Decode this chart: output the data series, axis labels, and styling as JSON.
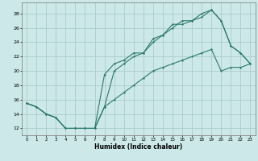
{
  "title": "",
  "xlabel": "Humidex (Indice chaleur)",
  "ylabel": "",
  "background_color": "#cce8e8",
  "grid_color": "#aacccc",
  "line_color": "#2d7a6e",
  "xlim": [
    -0.5,
    23.5
  ],
  "ylim": [
    11,
    29.5
  ],
  "yticks": [
    12,
    14,
    16,
    18,
    20,
    22,
    24,
    26,
    28
  ],
  "xticks": [
    0,
    1,
    2,
    3,
    4,
    5,
    6,
    7,
    8,
    9,
    10,
    11,
    12,
    13,
    14,
    15,
    16,
    17,
    18,
    19,
    20,
    21,
    22,
    23
  ],
  "line1_x": [
    0,
    1,
    2,
    3,
    4,
    5,
    6,
    7,
    8,
    9,
    10,
    11,
    12,
    13,
    14,
    15,
    16,
    17,
    18,
    19,
    20,
    21,
    22,
    23
  ],
  "line1_y": [
    15.5,
    15.0,
    14.0,
    13.5,
    12.0,
    12.0,
    12.0,
    12.0,
    19.5,
    21.0,
    21.5,
    22.5,
    22.5,
    24.5,
    25.0,
    26.5,
    26.5,
    27.0,
    28.0,
    28.5,
    27.0,
    23.5,
    22.5,
    21.0
  ],
  "line2_x": [
    0,
    1,
    2,
    3,
    4,
    5,
    6,
    7,
    8,
    9,
    10,
    11,
    12,
    13,
    14,
    15,
    16,
    17,
    18,
    19,
    20,
    21,
    22,
    23
  ],
  "line2_y": [
    15.5,
    15.0,
    14.0,
    13.5,
    12.0,
    12.0,
    12.0,
    12.0,
    15.0,
    20.0,
    21.0,
    22.0,
    22.5,
    24.0,
    25.0,
    26.0,
    27.0,
    27.0,
    27.5,
    28.5,
    27.0,
    23.5,
    22.5,
    21.0
  ],
  "line3_x": [
    0,
    1,
    2,
    3,
    4,
    5,
    6,
    7,
    8,
    9,
    10,
    11,
    12,
    13,
    14,
    15,
    16,
    17,
    18,
    19,
    20,
    21,
    22,
    23
  ],
  "line3_y": [
    15.5,
    15.0,
    14.0,
    13.5,
    12.0,
    12.0,
    12.0,
    12.0,
    15.0,
    16.0,
    17.0,
    18.0,
    19.0,
    20.0,
    20.5,
    21.0,
    21.5,
    22.0,
    22.5,
    23.0,
    20.0,
    20.5,
    20.5,
    21.0
  ]
}
